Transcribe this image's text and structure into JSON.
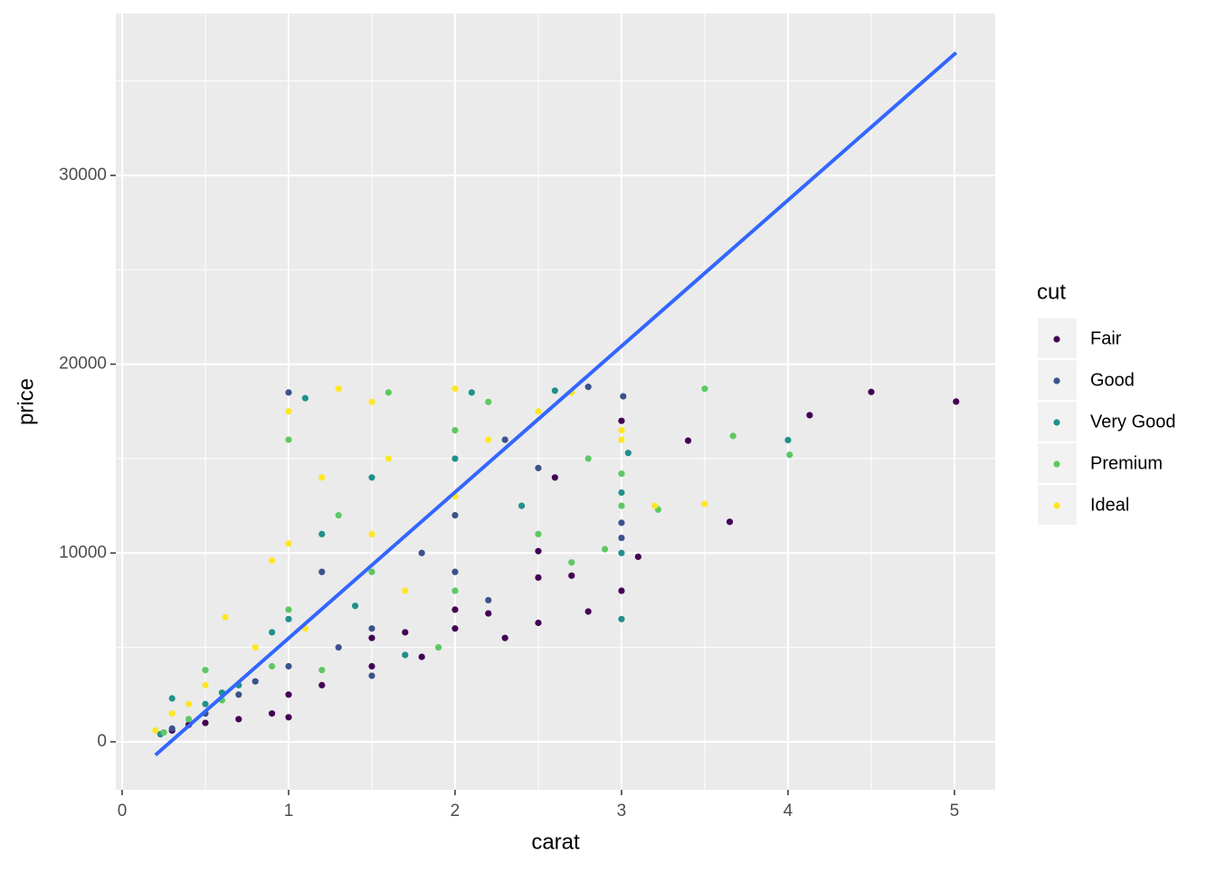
{
  "chart_data": {
    "type": "scatter",
    "x_label": "carat",
    "y_label": "price",
    "legend_title": "cut",
    "legend": "right",
    "grid": true,
    "xlim": [
      -0.038,
      5.245
    ],
    "ylim": [
      -2540,
      38570
    ],
    "xticks": [
      0,
      1,
      2,
      3,
      4,
      5
    ],
    "yticks": [
      0,
      10000,
      20000,
      30000
    ],
    "series": [
      {
        "name": "Fair",
        "color": "#440154",
        "x": [
          0.3,
          0.5,
          0.7,
          0.9,
          1.0,
          1.0,
          1.2,
          1.5,
          1.5,
          1.7,
          2.0,
          2.0,
          2.2,
          2.3,
          2.5,
          2.5,
          2.5,
          2.7,
          2.8,
          3.0,
          3.0,
          3.1,
          3.4,
          3.65,
          4.13,
          4.5,
          5.01,
          2.6,
          1.8,
          0.4
        ],
        "values": [
          600,
          1000,
          1200,
          1500,
          1300,
          2500,
          3000,
          4000,
          5500,
          5800,
          6000,
          7000,
          6800,
          5500,
          6300,
          8700,
          10100,
          8800,
          6900,
          8000,
          17000,
          9800,
          15950,
          11650,
          17300,
          18530,
          18020,
          14000,
          4500,
          900
        ]
      },
      {
        "name": "Good",
        "color": "#3B528B",
        "x": [
          0.3,
          0.5,
          0.7,
          1.0,
          1.0,
          1.2,
          1.5,
          1.5,
          1.8,
          2.0,
          2.0,
          2.3,
          2.5,
          2.8,
          3.0,
          3.0,
          3.01,
          2.2,
          0.8,
          1.3
        ],
        "values": [
          700,
          1500,
          2500,
          4000,
          18500,
          9000,
          6000,
          3500,
          10000,
          12000,
          9000,
          16000,
          14500,
          18800,
          11600,
          10800,
          18300,
          7500,
          3200,
          5000
        ]
      },
      {
        "name": "Very Good",
        "color": "#21908C",
        "x": [
          0.23,
          0.3,
          0.5,
          0.7,
          0.9,
          1.0,
          1.1,
          1.2,
          1.5,
          1.7,
          2.0,
          2.1,
          2.4,
          2.6,
          3.0,
          3.0,
          3.0,
          3.04,
          4.0,
          1.4,
          0.6
        ],
        "values": [
          400,
          2300,
          2000,
          3000,
          5800,
          6500,
          18200,
          11000,
          14000,
          4600,
          15000,
          18500,
          12500,
          18600,
          6500,
          10000,
          13200,
          15300,
          15980,
          7200,
          2600
        ]
      },
      {
        "name": "Premium",
        "color": "#5DC863",
        "x": [
          0.25,
          0.4,
          0.6,
          0.9,
          1.0,
          1.0,
          1.3,
          1.5,
          1.6,
          1.9,
          2.0,
          2.0,
          2.2,
          2.5,
          2.8,
          3.0,
          3.0,
          3.22,
          3.5,
          3.67,
          4.01,
          2.7,
          2.9,
          0.5,
          1.2
        ],
        "values": [
          500,
          1200,
          2200,
          4000,
          7000,
          16000,
          12000,
          9000,
          18500,
          5000,
          8000,
          16500,
          18000,
          11000,
          15000,
          12500,
          14200,
          12300,
          18700,
          16200,
          15200,
          9500,
          10200,
          3800,
          3800
        ]
      },
      {
        "name": "Ideal",
        "color": "#FDE725",
        "x": [
          0.2,
          0.3,
          0.5,
          0.62,
          0.8,
          0.9,
          1.0,
          1.0,
          1.2,
          1.3,
          1.5,
          1.5,
          1.6,
          1.7,
          2.0,
          2.0,
          2.2,
          2.5,
          2.7,
          3.0,
          3.0,
          3.2,
          3.5,
          1.1,
          0.4
        ],
        "values": [
          600,
          1500,
          3000,
          6600,
          5000,
          9600,
          10500,
          17500,
          14000,
          18700,
          11000,
          18000,
          15000,
          8000,
          13000,
          18700,
          16000,
          17500,
          18500,
          16000,
          16500,
          12500,
          12600,
          6000,
          2000
        ]
      }
    ],
    "trend": {
      "color": "#3366FF",
      "x": [
        0.2,
        5.01
      ],
      "values": [
        -700,
        36500
      ]
    }
  }
}
